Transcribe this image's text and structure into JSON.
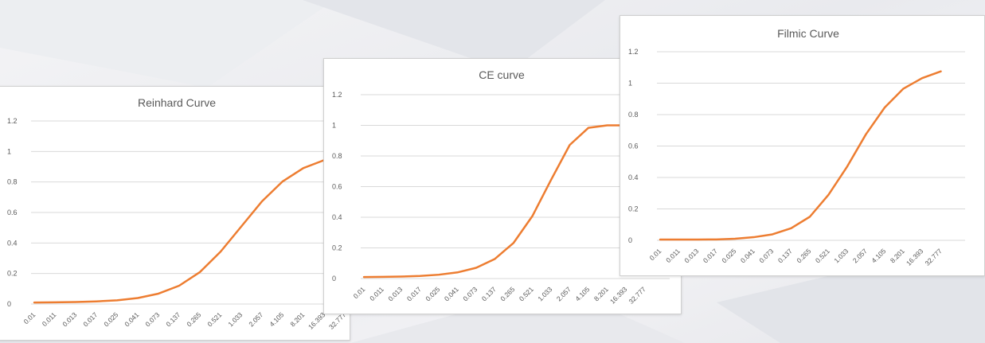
{
  "theme": {
    "line_color": "#ED7D31",
    "grid_color": "#D9D9D9",
    "text_color": "#595959"
  },
  "chart_data": [
    {
      "type": "line",
      "title": "Reinhard Curve",
      "categories": [
        "0.01",
        "0.011",
        "0.013",
        "0.017",
        "0.025",
        "0.041",
        "0.073",
        "0.137",
        "0.265",
        "0.521",
        "1.033",
        "2.057",
        "4.105",
        "8.201",
        "16.393",
        "32.777"
      ],
      "y_ticks": [
        "0",
        "0.2",
        "0.4",
        "0.6",
        "0.8",
        "1",
        "1.2"
      ],
      "ylim": [
        0,
        1.2
      ],
      "grid": true,
      "series": [
        {
          "values": [
            0.01,
            0.011,
            0.013,
            0.017,
            0.024,
            0.039,
            0.068,
            0.12,
            0.209,
            0.343,
            0.508,
            0.673,
            0.804,
            0.891,
            0.943,
            0.97
          ]
        }
      ]
    },
    {
      "type": "line",
      "title": "CE curve",
      "categories": [
        "0.01",
        "0.011",
        "0.013",
        "0.017",
        "0.025",
        "0.041",
        "0.073",
        "0.137",
        "0.265",
        "0.521",
        "1.033",
        "2.057",
        "4.105",
        "8.201",
        "16.393",
        "32.777"
      ],
      "y_ticks": [
        "0",
        "0.2",
        "0.4",
        "0.6",
        "0.8",
        "1",
        "1.2"
      ],
      "ylim": [
        0,
        1.2
      ],
      "grid": true,
      "series": [
        {
          "values": [
            0.01,
            0.011,
            0.013,
            0.017,
            0.025,
            0.04,
            0.07,
            0.128,
            0.233,
            0.407,
            0.644,
            0.872,
            0.984,
            1.0,
            1.0,
            1.0
          ]
        }
      ]
    },
    {
      "type": "line",
      "title": "Filmic Curve",
      "categories": [
        "0.01",
        "0.011",
        "0.013",
        "0.017",
        "0.025",
        "0.041",
        "0.073",
        "0.137",
        "0.265",
        "0.521",
        "1.033",
        "2.057",
        "4.105",
        "8.201",
        "16.393",
        "32.777"
      ],
      "y_ticks": [
        "0",
        "0.2",
        "0.4",
        "0.6",
        "0.8",
        "1",
        "1.2"
      ],
      "ylim": [
        0,
        1.2
      ],
      "grid": true,
      "series": [
        {
          "values": [
            0.005,
            0.005,
            0.005,
            0.006,
            0.01,
            0.02,
            0.038,
            0.077,
            0.15,
            0.29,
            0.47,
            0.675,
            0.845,
            0.965,
            1.032,
            1.075
          ]
        }
      ]
    }
  ]
}
